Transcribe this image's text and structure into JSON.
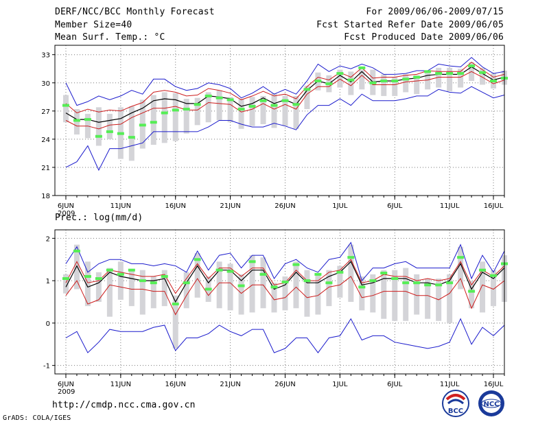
{
  "header": {
    "title": "DERF/NCC/BCC Monthly Forecast",
    "member_size": "Member Size=40",
    "variable": "Mean Surf. Temp.: °C",
    "for_period": "For 2009/06/06-2009/07/15",
    "started_date": "Fcst Started Refer Date 2009/06/05",
    "produced_date": "Fcst Produced Date 2009/06/06"
  },
  "footer": {
    "url": "http://cmdp.ncc.cma.gov.cn",
    "grads": "GrADS: COLA/IGES",
    "logo_bcc": "BCC",
    "logo_ncc": "NCC"
  },
  "colors": {
    "max_min": "#1a1acc",
    "spread": "#cc1a1a",
    "mean": "#000000",
    "obs": "#55ee55",
    "box": "#d4d4d8"
  },
  "chart_data": [
    {
      "type": "line",
      "name": "temperature",
      "title": "Mean Surf. Temp.: °C",
      "xlabel": "",
      "ylabel": "°C",
      "ylim": [
        18,
        34
      ],
      "yticks": [
        18,
        21,
        24,
        27,
        30,
        33
      ],
      "xlim": [
        -1,
        40
      ],
      "xticks": [
        {
          "day": 0,
          "label": "6JUN"
        },
        {
          "day": 5,
          "label": "11JUN"
        },
        {
          "day": 10,
          "label": "16JUN"
        },
        {
          "day": 15,
          "label": "21JUN"
        },
        {
          "day": 20,
          "label": "26JUN"
        },
        {
          "day": 25,
          "label": "1JUL"
        },
        {
          "day": 30,
          "label": "6JUL"
        },
        {
          "day": 35,
          "label": "11JUL"
        },
        {
          "day": 39,
          "label": "16JUL"
        }
      ],
      "year_label": "2009",
      "grid": true,
      "series": [
        {
          "name": "max",
          "values": [
            30.0,
            27.6,
            28.0,
            28.6,
            28.2,
            28.6,
            29.2,
            28.8,
            30.4,
            30.4,
            29.6,
            29.2,
            29.4,
            30.0,
            29.8,
            29.4,
            28.4,
            28.9,
            29.6,
            28.8,
            29.3,
            28.8,
            30.2,
            32.0,
            31.2,
            31.8,
            31.5,
            32.0,
            31.6,
            30.9,
            30.9,
            31.0,
            31.3,
            31.3,
            32.0,
            31.8,
            31.7,
            32.7,
            31.7,
            31.0,
            31.2
          ]
        },
        {
          "name": "upper",
          "values": [
            27.8,
            26.8,
            27.2,
            26.9,
            27.1,
            27.0,
            27.5,
            27.9,
            29.0,
            29.2,
            29.0,
            28.6,
            28.7,
            29.4,
            29.2,
            28.9,
            28.2,
            28.6,
            29.1,
            28.6,
            28.8,
            28.3,
            29.6,
            30.6,
            30.3,
            31.1,
            30.6,
            31.6,
            30.5,
            30.6,
            30.6,
            30.8,
            30.9,
            31.3,
            31.2,
            31.2,
            31.2,
            32.2,
            31.4,
            30.6,
            30.9
          ]
        },
        {
          "name": "mean",
          "values": [
            26.8,
            26.1,
            26.1,
            25.8,
            26.0,
            26.2,
            26.8,
            27.3,
            28.1,
            28.3,
            28.2,
            27.8,
            27.8,
            28.6,
            28.5,
            28.3,
            27.5,
            27.8,
            28.4,
            27.8,
            28.2,
            27.7,
            29.2,
            30.2,
            29.9,
            30.8,
            30.1,
            31.2,
            30.1,
            30.2,
            30.2,
            30.4,
            30.5,
            30.8,
            30.9,
            30.9,
            30.9,
            31.7,
            31.0,
            30.3,
            30.6
          ]
        },
        {
          "name": "lower",
          "values": [
            26.0,
            25.4,
            25.4,
            25.1,
            25.5,
            25.6,
            26.3,
            26.8,
            27.3,
            27.3,
            27.5,
            27.1,
            27.1,
            27.9,
            27.8,
            27.7,
            26.9,
            27.2,
            27.8,
            27.2,
            27.7,
            27.2,
            28.8,
            29.6,
            29.6,
            30.4,
            29.7,
            30.8,
            29.8,
            29.8,
            29.8,
            30.1,
            30.2,
            30.3,
            30.6,
            30.6,
            30.6,
            31.2,
            30.6,
            29.9,
            30.3
          ]
        },
        {
          "name": "min",
          "values": [
            21.0,
            21.6,
            23.3,
            20.7,
            23.0,
            23.0,
            23.3,
            23.6,
            24.8,
            24.8,
            24.8,
            24.8,
            24.8,
            25.3,
            26.0,
            26.0,
            25.6,
            25.3,
            25.3,
            25.7,
            25.4,
            25.0,
            26.6,
            27.6,
            27.6,
            28.3,
            27.6,
            28.8,
            28.1,
            28.1,
            28.1,
            28.3,
            28.6,
            28.6,
            29.3,
            29.0,
            28.9,
            29.6,
            29.0,
            28.4,
            28.7
          ]
        },
        {
          "name": "box_high",
          "values": [
            28.7,
            27.2,
            26.7,
            27.4,
            26.7,
            27.4,
            27.5,
            28.2,
            28.7,
            29.0,
            28.9,
            28.3,
            28.4,
            29.0,
            29.2,
            28.5,
            28.3,
            28.5,
            28.6,
            28.9,
            28.6,
            28.6,
            29.7,
            31.1,
            30.8,
            31.4,
            31.2,
            31.4,
            31.4,
            30.9,
            30.6,
            30.9,
            30.8,
            31.2,
            31.6,
            31.6,
            31.5,
            32.2,
            31.6,
            31.0,
            31.3
          ]
        },
        {
          "name": "box_low",
          "values": [
            25.8,
            24.5,
            24.1,
            23.3,
            24.0,
            21.9,
            21.7,
            23.0,
            23.4,
            23.6,
            23.8,
            24.6,
            25.5,
            25.8,
            26.0,
            25.8,
            25.1,
            25.4,
            25.6,
            25.2,
            25.4,
            25.1,
            27.2,
            29.2,
            29.0,
            29.5,
            28.7,
            29.3,
            28.7,
            28.6,
            28.6,
            29.0,
            28.8,
            29.3,
            29.5,
            29.1,
            29.5,
            30.2,
            29.8,
            29.4,
            29.8
          ]
        },
        {
          "name": "observation",
          "values": [
            27.6,
            26.0,
            26.1,
            24.3,
            24.8,
            24.6,
            24.2,
            25.5,
            25.8,
            26.8,
            27.1,
            27.2,
            27.7,
            28.6,
            28.4,
            28.2,
            27.2,
            27.5,
            28.1,
            27.6,
            28.1,
            27.7,
            29.3,
            30.2,
            29.9,
            31.0,
            30.3,
            31.6,
            30.0,
            30.2,
            30.2,
            30.4,
            30.6,
            31.2,
            31.0,
            31.0,
            31.0,
            31.8,
            31.1,
            30.2,
            30.5
          ]
        }
      ]
    },
    {
      "type": "line",
      "name": "precipitation",
      "title": "Prec.: log(mm/d)",
      "xlabel": "",
      "ylabel": "log(mm/d)",
      "ylim": [
        -1.2,
        2.2
      ],
      "yticks": [
        -1,
        0,
        1,
        2
      ],
      "xlim": [
        -1,
        40
      ],
      "xticks": [
        {
          "day": 0,
          "label": "6JUN"
        },
        {
          "day": 5,
          "label": "11JUN"
        },
        {
          "day": 10,
          "label": "16JUN"
        },
        {
          "day": 15,
          "label": "21JUN"
        },
        {
          "day": 20,
          "label": "26JUN"
        },
        {
          "day": 25,
          "label": "1JUL"
        },
        {
          "day": 30,
          "label": "6JUL"
        },
        {
          "day": 35,
          "label": "11JUL"
        },
        {
          "day": 39,
          "label": "16JUL"
        }
      ],
      "year_label": "2009",
      "grid": true,
      "series": [
        {
          "name": "max",
          "values": [
            1.4,
            1.8,
            1.2,
            1.4,
            1.5,
            1.5,
            1.4,
            1.4,
            1.35,
            1.4,
            1.35,
            1.2,
            1.7,
            1.25,
            1.6,
            1.65,
            1.3,
            1.6,
            1.6,
            1.05,
            1.4,
            1.5,
            1.3,
            1.2,
            1.5,
            1.55,
            1.9,
            1.0,
            1.3,
            1.3,
            1.4,
            1.45,
            1.3,
            1.3,
            1.3,
            1.3,
            1.85,
            1.05,
            1.6,
            1.2,
            1.7
          ]
        },
        {
          "name": "upper",
          "values": [
            0.95,
            1.45,
            0.95,
            1.0,
            1.25,
            1.2,
            1.15,
            1.1,
            1.1,
            1.15,
            0.7,
            1.05,
            1.4,
            1.05,
            1.3,
            1.3,
            1.1,
            1.3,
            1.3,
            0.9,
            0.95,
            1.25,
            1.0,
            1.0,
            1.2,
            1.25,
            1.5,
            0.95,
            1.0,
            1.15,
            1.1,
            1.1,
            1.0,
            1.05,
            1.0,
            1.05,
            1.45,
            0.9,
            1.25,
            1.1,
            1.35
          ]
        },
        {
          "name": "mean",
          "values": [
            0.85,
            1.35,
            0.85,
            0.95,
            1.2,
            1.1,
            1.05,
            1.0,
            1.0,
            1.05,
            0.5,
            0.95,
            1.35,
            0.95,
            1.25,
            1.25,
            1.0,
            1.25,
            1.25,
            0.8,
            0.9,
            1.2,
            0.95,
            0.95,
            1.1,
            1.2,
            1.45,
            0.9,
            0.95,
            1.05,
            1.05,
            1.05,
            0.95,
            0.95,
            0.9,
            1.0,
            1.4,
            0.8,
            1.2,
            1.05,
            1.3
          ]
        },
        {
          "name": "lower",
          "values": [
            0.65,
            1.0,
            0.45,
            0.55,
            0.9,
            0.85,
            0.8,
            0.8,
            0.75,
            0.75,
            0.2,
            0.65,
            1.05,
            0.65,
            0.95,
            0.95,
            0.7,
            0.9,
            0.9,
            0.55,
            0.6,
            0.85,
            0.6,
            0.65,
            0.85,
            0.9,
            1.1,
            0.6,
            0.65,
            0.75,
            0.75,
            0.75,
            0.65,
            0.65,
            0.55,
            0.7,
            1.05,
            0.35,
            0.9,
            0.8,
            1.0
          ]
        },
        {
          "name": "min",
          "values": [
            -0.35,
            -0.2,
            -0.7,
            -0.45,
            -0.15,
            -0.2,
            -0.2,
            -0.2,
            -0.1,
            -0.05,
            -0.65,
            -0.35,
            -0.35,
            -0.25,
            -0.05,
            -0.2,
            -0.3,
            -0.15,
            -0.15,
            -0.7,
            -0.6,
            -0.35,
            -0.35,
            -0.7,
            -0.35,
            -0.3,
            0.1,
            -0.4,
            -0.3,
            -0.3,
            -0.45,
            -0.5,
            -0.55,
            -0.6,
            -0.55,
            -0.45,
            0.1,
            -0.5,
            -0.1,
            -0.3,
            -0.05
          ]
        },
        {
          "name": "box_high",
          "values": [
            1.15,
            1.85,
            1.45,
            1.2,
            1.3,
            1.45,
            1.25,
            1.25,
            1.1,
            1.25,
            0.65,
            1.2,
            1.65,
            1.1,
            1.45,
            1.4,
            1.15,
            1.6,
            1.55,
            0.95,
            1.1,
            1.45,
            1.25,
            1.15,
            1.25,
            1.35,
            1.85,
            1.1,
            1.15,
            1.25,
            1.25,
            1.3,
            1.15,
            1.05,
            1.05,
            1.15,
            1.8,
            1.0,
            1.45,
            1.25,
            1.6
          ]
        },
        {
          "name": "box_low",
          "values": [
            0.7,
            0.8,
            0.4,
            0.5,
            0.15,
            0.55,
            0.4,
            0.2,
            0.35,
            0.4,
            -0.6,
            0.35,
            0.6,
            0.5,
            0.35,
            0.3,
            0.2,
            0.25,
            0.35,
            0.25,
            0.3,
            0.35,
            0.15,
            0.2,
            0.4,
            0.6,
            0.5,
            0.3,
            0.25,
            0.1,
            0.05,
            0.05,
            0.2,
            0.1,
            0.05,
            0.0,
            0.8,
            0.35,
            0.25,
            0.4,
            0.5
          ]
        },
        {
          "name": "observation",
          "values": [
            1.05,
            1.7,
            1.1,
            1.05,
            1.25,
            1.15,
            1.25,
            1.0,
            0.95,
            1.1,
            0.45,
            0.95,
            1.5,
            0.8,
            1.25,
            1.22,
            0.88,
            1.45,
            1.15,
            0.85,
            0.97,
            1.38,
            1.0,
            1.15,
            0.95,
            1.2,
            1.55,
            0.85,
            1.0,
            1.18,
            1.05,
            0.95,
            0.95,
            0.9,
            0.9,
            0.95,
            1.55,
            0.75,
            1.25,
            1.12,
            1.4
          ]
        }
      ]
    }
  ]
}
